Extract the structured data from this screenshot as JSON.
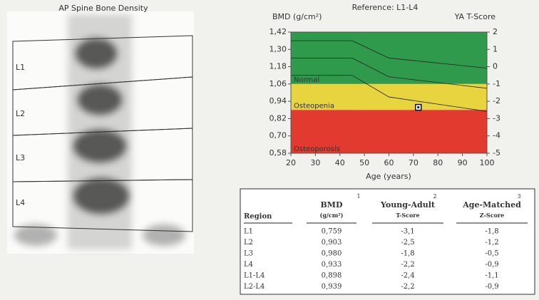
{
  "scan": {
    "title": "AP Spine Bone Density",
    "labels": [
      "L1",
      "L2",
      "L3",
      "L4"
    ]
  },
  "chart_data": {
    "type": "bmd-reference",
    "title": "Reference: L1-L4",
    "y_label": "BMD (g/cm²)",
    "y2_label": "YA T-Score",
    "x_label": "Age (years)",
    "xlim": [
      20,
      100
    ],
    "xticks": [
      20,
      30,
      40,
      50,
      60,
      70,
      80,
      90,
      100
    ],
    "ylim": [
      0.58,
      1.42
    ],
    "yticks": [
      {
        "value": 1.42,
        "label": "1,42"
      },
      {
        "value": 1.3,
        "label": "1,30"
      },
      {
        "value": 1.18,
        "label": "1,18"
      },
      {
        "value": 1.06,
        "label": "1,06"
      },
      {
        "value": 0.94,
        "label": "0,94"
      },
      {
        "value": 0.82,
        "label": "0,82"
      },
      {
        "value": 0.7,
        "label": "0,70"
      },
      {
        "value": 0.58,
        "label": "0,58"
      }
    ],
    "y2lim": [
      -5,
      2
    ],
    "y2ticks": [
      2,
      1,
      0,
      -1,
      -2,
      -3,
      -4,
      -5
    ],
    "bands": [
      {
        "label": "Normal",
        "from": 1.06,
        "to": 1.42,
        "color": "#2f9a4c"
      },
      {
        "label": "Osteopenia",
        "from": 0.88,
        "to": 1.06,
        "color": "#e8d43e"
      },
      {
        "label": "Osteoporosis",
        "from": 0.58,
        "to": 0.88,
        "color": "#e23a2e"
      }
    ],
    "curves": [
      {
        "x": [
          20,
          45,
          60,
          100
        ],
        "values": [
          1.36,
          1.36,
          1.24,
          1.17
        ]
      },
      {
        "x": [
          20,
          45,
          60,
          100
        ],
        "values": [
          1.24,
          1.24,
          1.11,
          1.03
        ]
      },
      {
        "x": [
          20,
          45,
          60,
          100
        ],
        "values": [
          1.12,
          1.12,
          0.97,
          0.87
        ]
      }
    ],
    "point": {
      "x": 72,
      "y": 0.898
    }
  },
  "table": {
    "header": [
      [
        "Region"
      ],
      [
        "BMD",
        "1",
        "(g/cm²)"
      ],
      [
        "Young-Adult",
        "2",
        "T-Score"
      ],
      [
        "Age-Matched",
        "3",
        "Z-Score"
      ]
    ],
    "rows": [
      [
        "L1",
        "0,759",
        "-3,1",
        "-1,8"
      ],
      [
        "L2",
        "0,903",
        "-2,5",
        "-1,2"
      ],
      [
        "L3",
        "0,980",
        "-1,8",
        "-0,5"
      ],
      [
        "L4",
        "0,933",
        "-2,2",
        "-0,9"
      ],
      [
        "L1-L4",
        "0,898",
        "-2,4",
        "-1,1"
      ],
      [
        "L2-L4",
        "0,939",
        "-2,2",
        "-0,9"
      ]
    ]
  }
}
